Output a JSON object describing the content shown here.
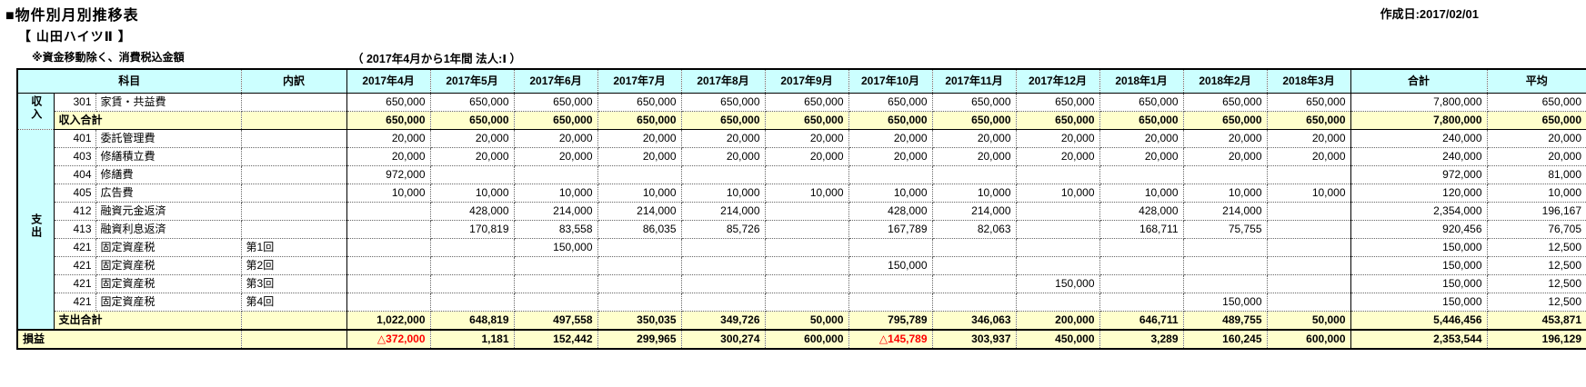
{
  "meta": {
    "title": "■物件別月別推移表",
    "created": "作成日:2017/02/01",
    "property": "【 山田ハイツⅡ 】",
    "note": "※資金移動除く、消費税込金額",
    "period": "（ 2017年4月から1年間 法人:Ⅰ ）"
  },
  "colors": {
    "header_bg": "#CCFFFF",
    "total_bg": "#FFFFCC",
    "negative": "#FF0000"
  },
  "table": {
    "headers": {
      "subject": "科目",
      "breakdown": "内訳",
      "months": [
        "2017年4月",
        "2017年5月",
        "2017年6月",
        "2017年7月",
        "2017年8月",
        "2017年9月",
        "2017年10月",
        "2017年11月",
        "2017年12月",
        "2018年1月",
        "2018年2月",
        "2018年3月"
      ],
      "total": "合計",
      "average": "平均"
    },
    "rows": [
      {
        "type": "data",
        "group": {
          "label": "収入",
          "span": 2
        },
        "code": "301",
        "name": "家賃・共益費",
        "detail": "",
        "values": [
          "650,000",
          "650,000",
          "650,000",
          "650,000",
          "650,000",
          "650,000",
          "650,000",
          "650,000",
          "650,000",
          "650,000",
          "650,000",
          "650,000"
        ],
        "total": "7,800,000",
        "average": "650,000"
      },
      {
        "type": "total",
        "label": "収入合計",
        "sect_end": true,
        "values": [
          "650,000",
          "650,000",
          "650,000",
          "650,000",
          "650,000",
          "650,000",
          "650,000",
          "650,000",
          "650,000",
          "650,000",
          "650,000",
          "650,000"
        ],
        "total": "7,800,000",
        "average": "650,000"
      },
      {
        "type": "data",
        "group": {
          "label": "支出",
          "span": 11
        },
        "code": "401",
        "name": "委託管理費",
        "detail": "",
        "values": [
          "20,000",
          "20,000",
          "20,000",
          "20,000",
          "20,000",
          "20,000",
          "20,000",
          "20,000",
          "20,000",
          "20,000",
          "20,000",
          "20,000"
        ],
        "total": "240,000",
        "average": "20,000"
      },
      {
        "type": "data",
        "code": "403",
        "name": "修繕積立費",
        "detail": "",
        "values": [
          "20,000",
          "20,000",
          "20,000",
          "20,000",
          "20,000",
          "20,000",
          "20,000",
          "20,000",
          "20,000",
          "20,000",
          "20,000",
          "20,000"
        ],
        "total": "240,000",
        "average": "20,000"
      },
      {
        "type": "data",
        "code": "404",
        "name": "修繕費",
        "detail": "",
        "values": [
          "972,000",
          "",
          "",
          "",
          "",
          "",
          "",
          "",
          "",
          "",
          "",
          ""
        ],
        "total": "972,000",
        "average": "81,000"
      },
      {
        "type": "data",
        "code": "405",
        "name": "広告費",
        "detail": "",
        "values": [
          "10,000",
          "10,000",
          "10,000",
          "10,000",
          "10,000",
          "10,000",
          "10,000",
          "10,000",
          "10,000",
          "10,000",
          "10,000",
          "10,000"
        ],
        "total": "120,000",
        "average": "10,000"
      },
      {
        "type": "data",
        "code": "412",
        "name": "融資元金返済",
        "detail": "",
        "values": [
          "",
          "428,000",
          "214,000",
          "214,000",
          "214,000",
          "",
          "428,000",
          "214,000",
          "",
          "428,000",
          "214,000",
          ""
        ],
        "total": "2,354,000",
        "average": "196,167"
      },
      {
        "type": "data",
        "code": "413",
        "name": "融資利息返済",
        "detail": "",
        "values": [
          "",
          "170,819",
          "83,558",
          "86,035",
          "85,726",
          "",
          "167,789",
          "82,063",
          "",
          "168,711",
          "75,755",
          ""
        ],
        "total": "920,456",
        "average": "76,705"
      },
      {
        "type": "data",
        "code": "421",
        "name": "固定資産税",
        "detail": "第1回",
        "values": [
          "",
          "",
          "150,000",
          "",
          "",
          "",
          "",
          "",
          "",
          "",
          "",
          ""
        ],
        "total": "150,000",
        "average": "12,500"
      },
      {
        "type": "data",
        "code": "421",
        "name": "固定資産税",
        "detail": "第2回",
        "values": [
          "",
          "",
          "",
          "",
          "",
          "",
          "150,000",
          "",
          "",
          "",
          "",
          ""
        ],
        "total": "150,000",
        "average": "12,500"
      },
      {
        "type": "data",
        "code": "421",
        "name": "固定資産税",
        "detail": "第3回",
        "values": [
          "",
          "",
          "",
          "",
          "",
          "",
          "",
          "",
          "150,000",
          "",
          "",
          ""
        ],
        "total": "150,000",
        "average": "12,500"
      },
      {
        "type": "data",
        "code": "421",
        "name": "固定資産税",
        "detail": "第4回",
        "values": [
          "",
          "",
          "",
          "",
          "",
          "",
          "",
          "",
          "",
          "",
          "150,000",
          ""
        ],
        "total": "150,000",
        "average": "12,500"
      },
      {
        "type": "total",
        "label": "支出合計",
        "values": [
          "1,022,000",
          "648,819",
          "497,558",
          "350,035",
          "349,726",
          "50,000",
          "795,789",
          "346,063",
          "200,000",
          "646,711",
          "489,755",
          "50,000"
        ],
        "total": "5,446,456",
        "average": "453,871"
      },
      {
        "type": "profit",
        "label": "損益",
        "values": [
          "△372,000",
          "1,181",
          "152,442",
          "299,965",
          "300,274",
          "600,000",
          "△145,789",
          "303,937",
          "450,000",
          "3,289",
          "160,245",
          "600,000"
        ],
        "total": "2,353,544",
        "average": "196,129"
      }
    ]
  }
}
